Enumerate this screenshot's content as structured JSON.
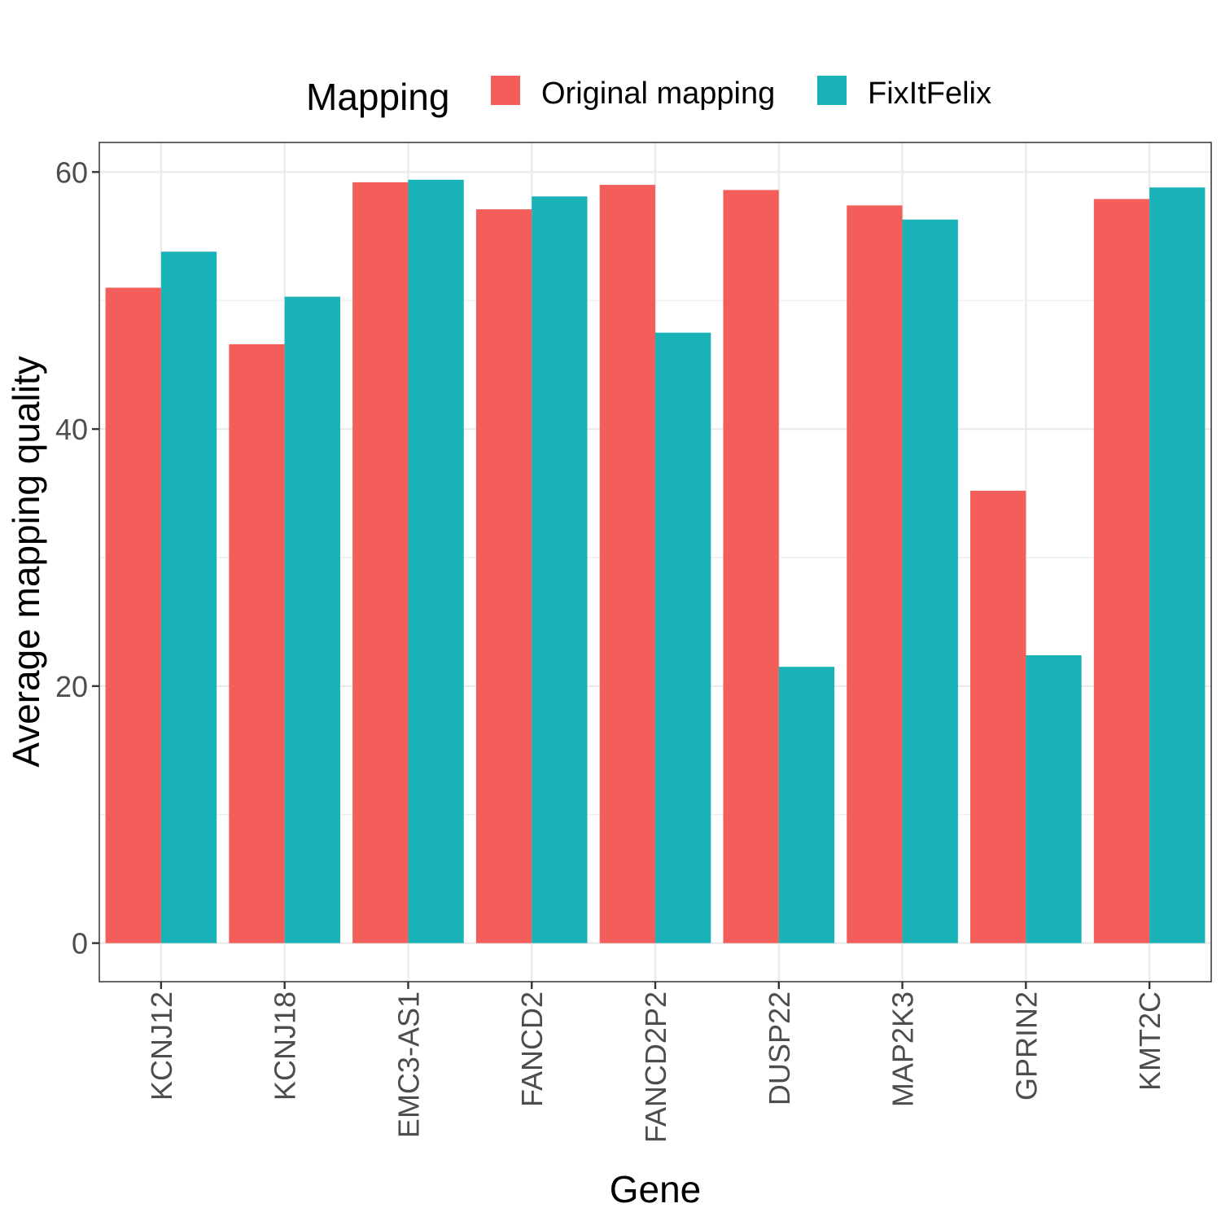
{
  "chart_data": {
    "type": "bar",
    "title": "",
    "xlabel": "Gene",
    "ylabel": "Average mapping quality",
    "ylim": [
      -3,
      62.3
    ],
    "yticks": [
      0,
      20,
      40,
      60
    ],
    "grid": true,
    "legend_position": "top",
    "legend_title": "Mapping",
    "categories": [
      "KCNJ12",
      "KCNJ18",
      "EMC3-AS1",
      "FANCD2",
      "FANCD2P2",
      "DUSP22",
      "MAP2K3",
      "GPRIN2",
      "KMT2C"
    ],
    "series": [
      {
        "name": "Original mapping",
        "color": "#f35e5a",
        "values": [
          51.0,
          46.6,
          59.2,
          57.1,
          59.0,
          58.6,
          57.4,
          35.2,
          57.9
        ]
      },
      {
        "name": "FixItFelix",
        "color": "#19b3b7",
        "values": [
          53.8,
          50.3,
          59.4,
          58.1,
          47.5,
          21.5,
          56.3,
          22.4,
          58.8
        ]
      }
    ]
  }
}
